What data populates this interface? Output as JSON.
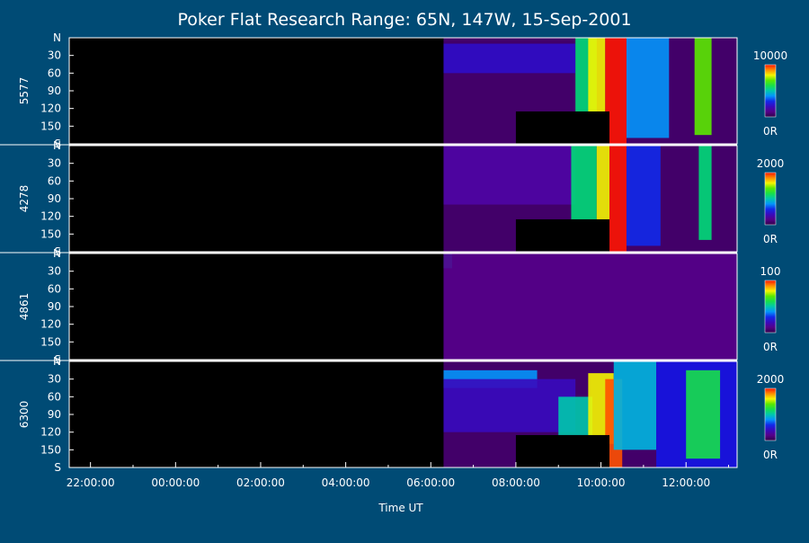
{
  "chart_data": {
    "type": "heatmap",
    "title": "Poker Flat Research Range: 65N, 147W, 15-Sep-2001",
    "xlabel": "Time UT",
    "x_ticks": [
      "22:00:00",
      "00:00:00",
      "02:00:00",
      "04:00:00",
      "06:00:00",
      "08:00:00",
      "10:00:00",
      "12:00:00"
    ],
    "x_range_hours": [
      21.5,
      37.2
    ],
    "y_ticks": [
      "N",
      "30",
      "60",
      "90",
      "120",
      "150",
      "S"
    ],
    "y_range": [
      0,
      180
    ],
    "colormap": "rainbow",
    "panels": [
      {
        "label": "5577",
        "colorbar_max": "10000",
        "colorbar_min": "0R",
        "data_start_hour": 30.3,
        "gap": [
          32.0,
          34.2,
          125,
          180
        ],
        "features": [
          {
            "t0": 30.3,
            "t1": 33.4,
            "y0": 10,
            "y1": 60,
            "level": 0.22
          },
          {
            "t0": 33.4,
            "t1": 33.9,
            "y0": 0,
            "y1": 150,
            "level": 0.55
          },
          {
            "t0": 33.7,
            "t1": 34.1,
            "y0": 0,
            "y1": 150,
            "level": 0.8
          },
          {
            "t0": 34.1,
            "t1": 34.6,
            "y0": 0,
            "y1": 180,
            "level": 1.0
          },
          {
            "t0": 34.6,
            "t1": 35.6,
            "y0": 0,
            "y1": 170,
            "level": 0.4
          },
          {
            "t0": 36.2,
            "t1": 36.6,
            "y0": 0,
            "y1": 165,
            "level": 0.7
          }
        ]
      },
      {
        "label": "4278",
        "colorbar_max": "2000",
        "colorbar_min": "0R",
        "data_start_hour": 30.3,
        "gap": [
          32.0,
          34.2,
          125,
          180
        ],
        "features": [
          {
            "t0": 30.3,
            "t1": 33.4,
            "y0": 0,
            "y1": 100,
            "level": 0.15
          },
          {
            "t0": 33.3,
            "t1": 33.9,
            "y0": 0,
            "y1": 135,
            "level": 0.55
          },
          {
            "t0": 33.9,
            "t1": 34.2,
            "y0": 0,
            "y1": 150,
            "level": 0.8
          },
          {
            "t0": 34.2,
            "t1": 34.6,
            "y0": 0,
            "y1": 180,
            "level": 1.0
          },
          {
            "t0": 34.6,
            "t1": 35.4,
            "y0": 0,
            "y1": 170,
            "level": 0.3
          },
          {
            "t0": 36.3,
            "t1": 36.6,
            "y0": 0,
            "y1": 160,
            "level": 0.55
          }
        ]
      },
      {
        "label": "4861",
        "colorbar_max": "100",
        "colorbar_min": "0R",
        "data_start_hour": 30.3,
        "gap": [],
        "features": [
          {
            "t0": 30.3,
            "t1": 30.5,
            "y0": 0,
            "y1": 25,
            "level": 0.45
          },
          {
            "t0": 30.3,
            "t1": 37.2,
            "y0": 0,
            "y1": 180,
            "level": 0.1
          }
        ]
      },
      {
        "label": "6300",
        "colorbar_max": "2000",
        "colorbar_min": "0R",
        "data_start_hour": 30.3,
        "gap": [
          32.0,
          34.2,
          125,
          180
        ],
        "features": [
          {
            "t0": 30.3,
            "t1": 32.5,
            "y0": 15,
            "y1": 45,
            "level": 0.4
          },
          {
            "t0": 30.3,
            "t1": 33.4,
            "y0": 30,
            "y1": 120,
            "level": 0.2
          },
          {
            "t0": 33.0,
            "t1": 33.8,
            "y0": 60,
            "y1": 125,
            "level": 0.5
          },
          {
            "t0": 33.7,
            "t1": 34.3,
            "y0": 20,
            "y1": 140,
            "level": 0.8
          },
          {
            "t0": 34.1,
            "t1": 34.5,
            "y0": 30,
            "y1": 180,
            "level": 0.95
          },
          {
            "t0": 34.3,
            "t1": 35.3,
            "y0": 0,
            "y1": 150,
            "level": 0.45
          },
          {
            "t0": 35.3,
            "t1": 37.2,
            "y0": 0,
            "y1": 180,
            "level": 0.28
          },
          {
            "t0": 36.0,
            "t1": 36.8,
            "y0": 15,
            "y1": 165,
            "level": 0.6
          }
        ]
      }
    ]
  }
}
